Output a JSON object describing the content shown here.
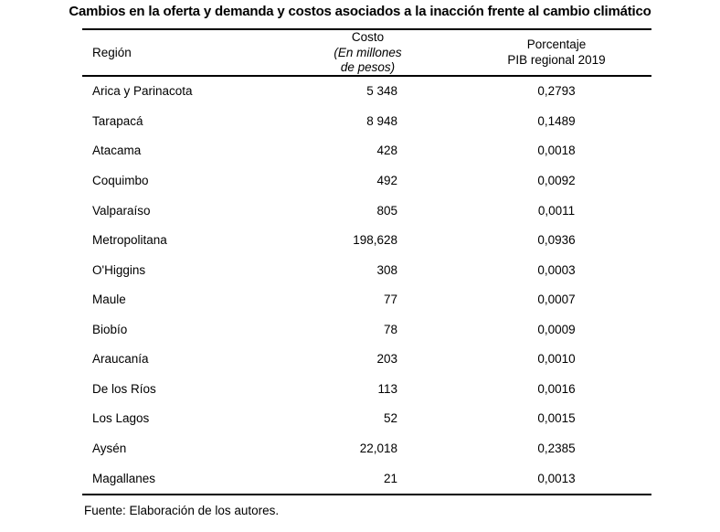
{
  "title": "Cambios en la oferta y demanda y costos asociados a la inacción frente al cambio climático",
  "table": {
    "header": {
      "region": "Región",
      "costo_line1": "Costo",
      "costo_line2": "(En millones",
      "costo_line3": "de pesos)",
      "porcentaje_line1": "Porcentaje",
      "porcentaje_line2": "PIB regional 2019"
    },
    "rows": [
      {
        "region": "Arica y Parinacota",
        "costo": "5 348",
        "porcentaje": "0,2793"
      },
      {
        "region": "Tarapacá",
        "costo": "8 948",
        "porcentaje": "0,1489"
      },
      {
        "region": "Atacama",
        "costo": "428",
        "porcentaje": "0,0018"
      },
      {
        "region": "Coquimbo",
        "costo": "492",
        "porcentaje": "0,0092"
      },
      {
        "region": "Valparaíso",
        "costo": "805",
        "porcentaje": "0,0011"
      },
      {
        "region": "Metropolitana",
        "costo": "198,628",
        "porcentaje": "0,0936"
      },
      {
        "region": "O'Higgins",
        "costo": "308",
        "porcentaje": "0,0003"
      },
      {
        "region": "Maule",
        "costo": "77",
        "porcentaje": "0,0007"
      },
      {
        "region": "Biobío",
        "costo": "78",
        "porcentaje": "0,0009"
      },
      {
        "region": "Araucanía",
        "costo": "203",
        "porcentaje": "0,0010"
      },
      {
        "region": "De los Ríos",
        "costo": "113",
        "porcentaje": "0,0016"
      },
      {
        "region": "Los Lagos",
        "costo": "52",
        "porcentaje": "0,0015"
      },
      {
        "region": "Aysén",
        "costo": "22,018",
        "porcentaje": "0,2385"
      },
      {
        "region": "Magallanes",
        "costo": "21",
        "porcentaje": "0,0013"
      }
    ]
  },
  "footer": "Fuente: Elaboración de los autores.",
  "colors": {
    "text": "#000000",
    "rule": "#000000",
    "background": "#ffffff"
  }
}
